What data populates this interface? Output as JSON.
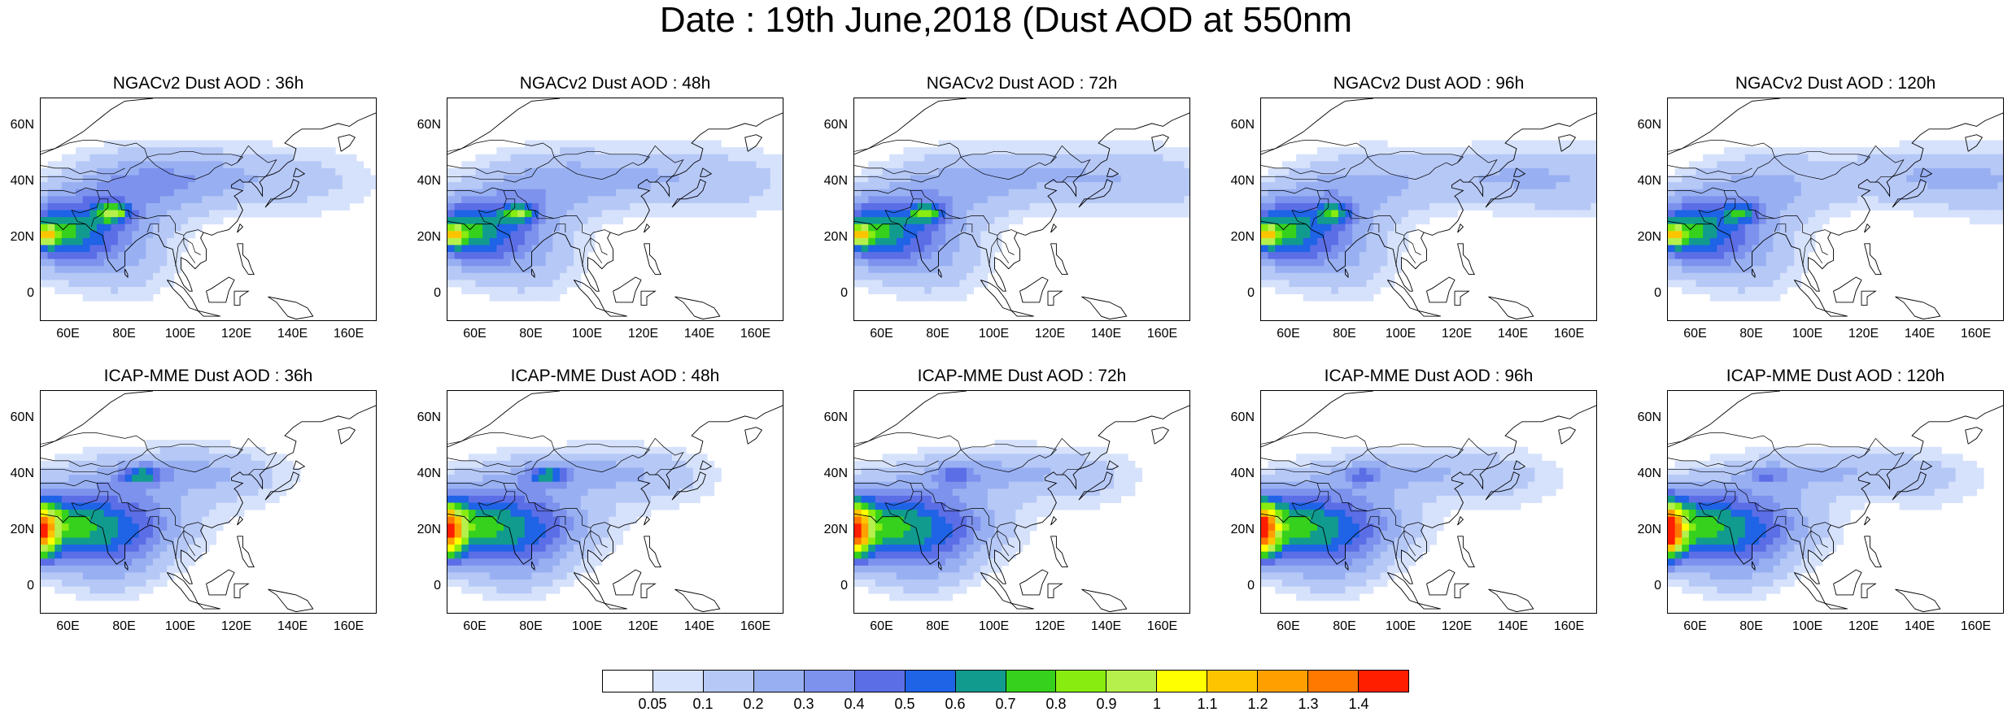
{
  "figure": {
    "title": "Date : 19th June,2018 (Dust AOD at 550nm"
  },
  "axes": {
    "lat_ticks": [
      "60N",
      "40N",
      "20N",
      "0"
    ],
    "lon_ticks": [
      "60E",
      "80E",
      "100E",
      "120E",
      "140E",
      "160E"
    ],
    "lon_range": [
      50,
      170
    ],
    "lat_range": [
      -10,
      70
    ]
  },
  "panels": [
    {
      "title": "NGACv2 Dust AOD : 36h",
      "model": "NGACv2",
      "lead": "36h"
    },
    {
      "title": "NGACv2 Dust AOD : 48h",
      "model": "NGACv2",
      "lead": "48h"
    },
    {
      "title": "NGACv2 Dust AOD : 72h",
      "model": "NGACv2",
      "lead": "72h"
    },
    {
      "title": "NGACv2 Dust AOD : 96h",
      "model": "NGACv2",
      "lead": "96h"
    },
    {
      "title": "NGACv2 Dust AOD : 120h",
      "model": "NGACv2",
      "lead": "120h"
    },
    {
      "title": "ICAP-MME Dust AOD : 36h",
      "model": "ICAP-MME",
      "lead": "36h"
    },
    {
      "title": "ICAP-MME Dust AOD : 48h",
      "model": "ICAP-MME",
      "lead": "48h"
    },
    {
      "title": "ICAP-MME Dust AOD : 72h",
      "model": "ICAP-MME",
      "lead": "72h"
    },
    {
      "title": "ICAP-MME Dust AOD : 96h",
      "model": "ICAP-MME",
      "lead": "96h"
    },
    {
      "title": "ICAP-MME Dust AOD : 120h",
      "model": "ICAP-MME",
      "lead": "120h"
    }
  ],
  "colorbar": {
    "labels": [
      "0.05",
      "0.1",
      "0.2",
      "0.3",
      "0.4",
      "0.5",
      "0.6",
      "0.7",
      "0.8",
      "0.9",
      "1",
      "1.1",
      "1.2",
      "1.3",
      "1.4"
    ],
    "colors": [
      "#ffffff",
      "#d6e2fb",
      "#b6c8f6",
      "#98b0f2",
      "#7c92ed",
      "#5c6ee6",
      "#1f63e6",
      "#119b8f",
      "#36d11c",
      "#88ec10",
      "#b6f04d",
      "#ffff00",
      "#ffc400",
      "#ffa000",
      "#ff7800",
      "#ff1e00"
    ]
  }
}
